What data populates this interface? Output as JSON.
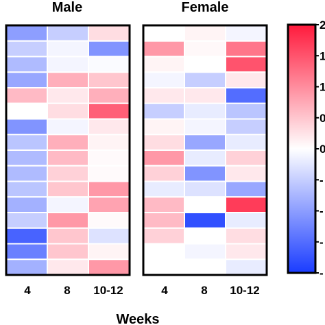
{
  "chart_data": {
    "type": "heatmap",
    "x_title": "Weeks",
    "columns": [
      "4",
      "8",
      "10-12"
    ],
    "colorscale": {
      "low": "#1a3cff",
      "mid": "#ffffff",
      "high": "#ff1a3c"
    },
    "colorbar_ticks": [
      "2",
      "1",
      "1",
      "0",
      "0",
      "-",
      "-",
      "-",
      "-"
    ],
    "panels": [
      {
        "title": "Male",
        "values": [
          [
            -0.5,
            -0.25,
            0.15
          ],
          [
            -0.25,
            -0.05,
            -0.55
          ],
          [
            -0.35,
            -0.05,
            -0.02
          ],
          [
            -0.45,
            0.35,
            0.25
          ],
          [
            0.3,
            0.1,
            0.35
          ],
          [
            0.0,
            0.15,
            0.7
          ],
          [
            -0.55,
            -0.05,
            0.1
          ],
          [
            -0.3,
            0.35,
            0.05
          ],
          [
            -0.35,
            0.3,
            0.02
          ],
          [
            -0.35,
            0.2,
            0.02
          ],
          [
            -0.3,
            0.25,
            0.45
          ],
          [
            -0.4,
            -0.05,
            0.4
          ],
          [
            -0.25,
            0.45,
            0.02
          ],
          [
            -0.8,
            0.25,
            -0.15
          ],
          [
            -0.65,
            0.25,
            0.05
          ],
          [
            -0.4,
            0.1,
            0.45
          ]
        ]
      },
      {
        "title": "Female",
        "values": [
          [
            0.0,
            0.05,
            -0.05
          ],
          [
            0.45,
            0.03,
            0.6
          ],
          [
            0.05,
            0.0,
            0.75
          ],
          [
            -0.05,
            -0.25,
            0.1
          ],
          [
            0.1,
            0.1,
            -0.75
          ],
          [
            -0.25,
            -0.1,
            -0.3
          ],
          [
            0.05,
            -0.05,
            -0.25
          ],
          [
            0.15,
            -0.45,
            -0.1
          ],
          [
            0.45,
            -0.1,
            0.2
          ],
          [
            0.2,
            -0.55,
            0.1
          ],
          [
            -0.1,
            -0.15,
            -0.45
          ],
          [
            0.3,
            0.0,
            0.85
          ],
          [
            0.3,
            -0.9,
            -0.1
          ],
          [
            0.2,
            0.0,
            0.15
          ],
          [
            0.0,
            -0.05,
            0.1
          ],
          [
            0.0,
            0.0,
            -0.1
          ]
        ]
      }
    ]
  }
}
